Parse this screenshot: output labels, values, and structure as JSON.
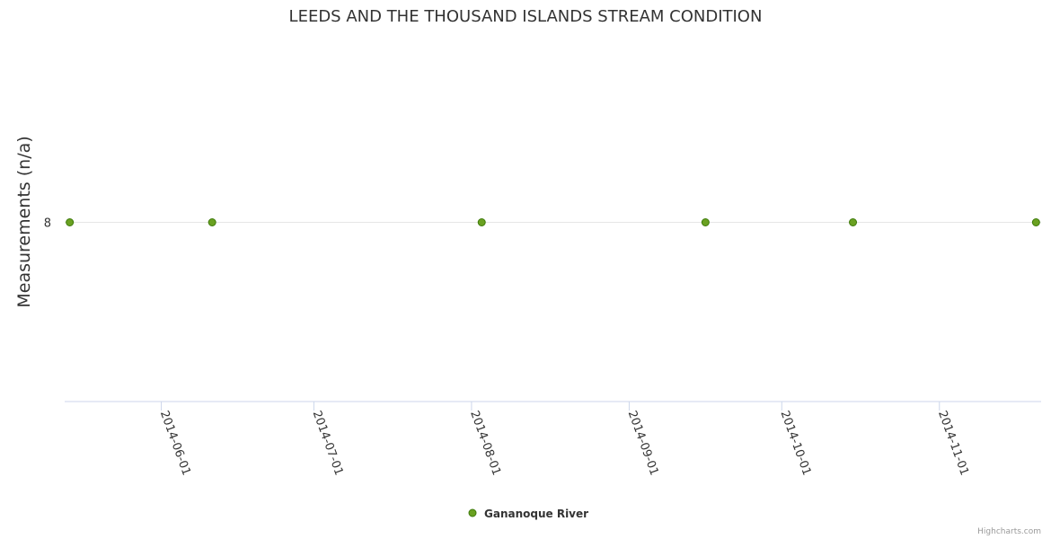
{
  "chart_data": {
    "type": "scatter",
    "title": "LEEDS AND THE THOUSAND ISLANDS STREAM CONDITION",
    "ylabel": "Measurements (n/a)",
    "xlabel": "",
    "x_type": "datetime",
    "x_ticks": [
      "2014-06-01",
      "2014-07-01",
      "2014-08-01",
      "2014-09-01",
      "2014-10-01",
      "2014-11-01"
    ],
    "x_range": [
      "2014-05-13",
      "2014-11-21"
    ],
    "y_ticks": [
      8
    ],
    "grid": true,
    "legend_position": "bottom-center",
    "series": [
      {
        "name": "Gananoque River",
        "color": "#6aa121",
        "points": [
          {
            "x": "2014-05-14",
            "y": 8
          },
          {
            "x": "2014-06-11",
            "y": 8
          },
          {
            "x": "2014-08-03",
            "y": 8
          },
          {
            "x": "2014-09-16",
            "y": 8
          },
          {
            "x": "2014-10-15",
            "y": 8
          },
          {
            "x": "2014-11-20",
            "y": 8
          }
        ]
      }
    ]
  },
  "credits": "Highcharts.com",
  "colors": {
    "text": "#333333",
    "grid": "#e6e6e6",
    "axis": "#ccd6eb",
    "point_fill": "#6aa121",
    "point_outline": "#3d7a0a",
    "credit": "#999999"
  }
}
